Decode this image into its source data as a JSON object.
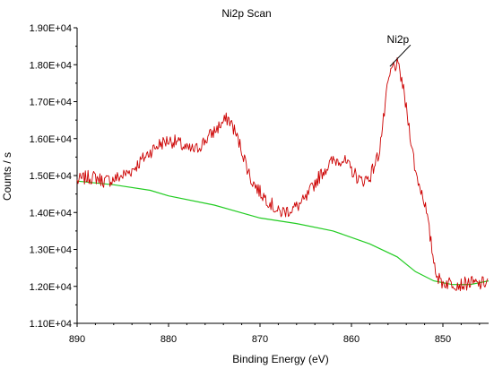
{
  "chart_data": {
    "type": "line",
    "title": "Ni2p Scan",
    "xlabel": "Binding Energy (eV)",
    "ylabel": "Counts / s",
    "xlim": [
      890,
      845
    ],
    "ylim": [
      11000,
      19000
    ],
    "x_reversed": true,
    "x_ticks": [
      890,
      880,
      870,
      860,
      850
    ],
    "x_tick_labels": [
      "890",
      "880",
      "870",
      "860",
      "850"
    ],
    "y_ticks": [
      11000,
      12000,
      13000,
      14000,
      15000,
      16000,
      17000,
      18000,
      19000
    ],
    "y_tick_labels": [
      "1.10E+04",
      "1.20E+04",
      "1.30E+04",
      "1.40E+04",
      "1.50E+04",
      "1.60E+04",
      "1.70E+04",
      "1.80E+04",
      "1.90E+04"
    ],
    "grid": false,
    "legend": "none",
    "colors": {
      "data": "#cc0000",
      "background": "#22cc22",
      "axis": "#000000"
    },
    "series": [
      {
        "role": "data",
        "x": [
          890,
          889,
          888,
          887,
          886,
          885,
          884,
          883,
          882,
          881,
          880,
          879,
          878,
          877,
          876,
          875,
          874,
          873.5,
          873,
          872,
          871,
          870,
          869,
          868,
          867,
          866,
          865,
          864,
          863,
          862,
          861,
          860,
          859,
          858,
          857,
          856.5,
          856,
          855.5,
          855,
          854.5,
          854,
          853.5,
          853,
          852.5,
          852,
          851.5,
          851,
          850.5,
          850,
          849,
          848,
          847,
          846,
          845
        ],
        "y": [
          14850,
          14950,
          14950,
          14850,
          14900,
          15000,
          15150,
          15400,
          15650,
          15850,
          15950,
          15900,
          15700,
          15700,
          15950,
          16200,
          16450,
          16550,
          16350,
          15700,
          14900,
          14550,
          14300,
          14000,
          14050,
          14150,
          14350,
          14800,
          15150,
          15400,
          15450,
          15150,
          14850,
          14950,
          15600,
          16500,
          17500,
          17950,
          18000,
          17600,
          16800,
          16000,
          15100,
          14700,
          14300,
          13500,
          12700,
          12200,
          12100,
          12100,
          12050,
          12100,
          12050,
          12150
        ]
      },
      {
        "role": "background",
        "x": [
          890,
          886,
          882,
          880,
          875,
          870,
          866,
          862,
          858,
          855,
          853,
          851,
          849,
          847,
          845
        ],
        "y": [
          14850,
          14750,
          14600,
          14450,
          14200,
          13850,
          13700,
          13500,
          13150,
          12800,
          12400,
          12150,
          12050,
          12050,
          12150
        ]
      }
    ],
    "annotations": [
      {
        "text": "Ni2p",
        "x": 855.5,
        "y": 18050
      }
    ]
  }
}
